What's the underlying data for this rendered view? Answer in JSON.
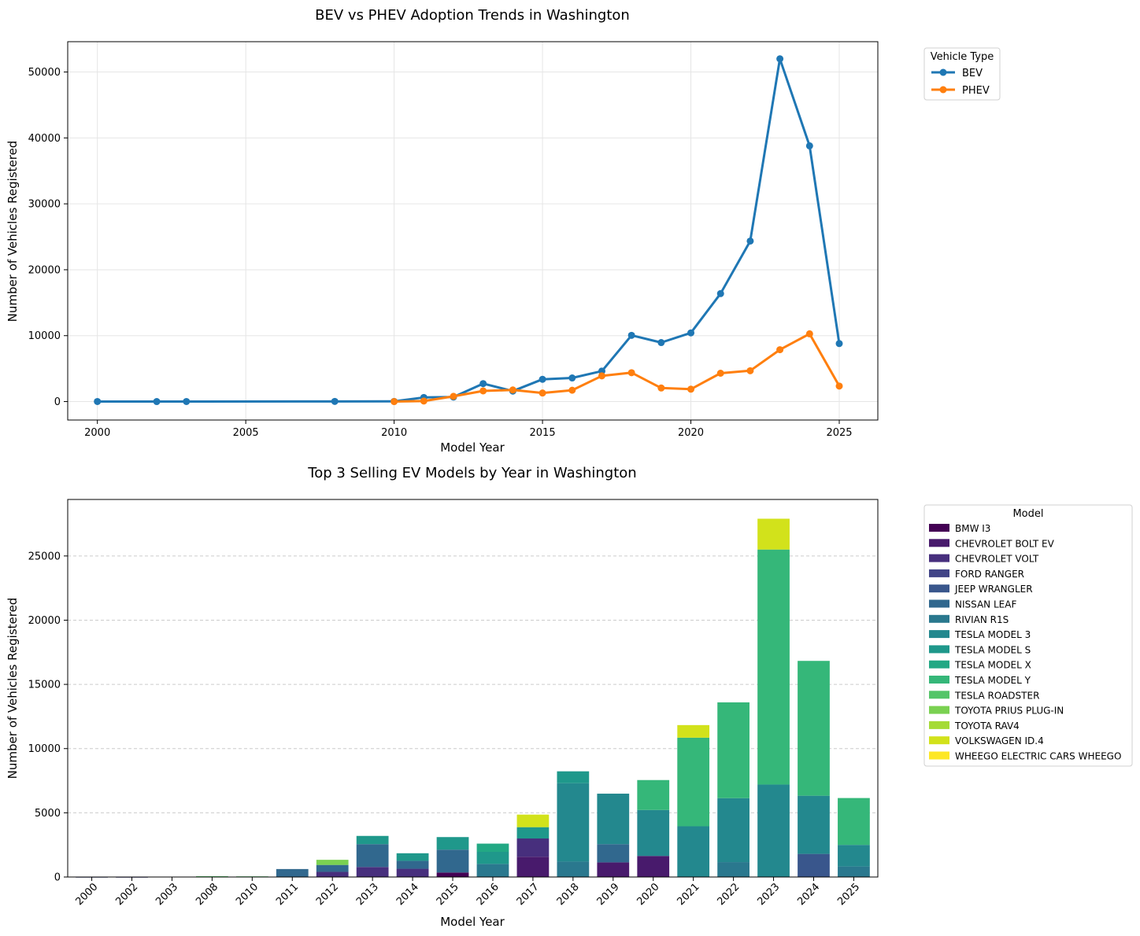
{
  "chart_data": [
    {
      "type": "line",
      "title": "BEV vs PHEV Adoption Trends in Washington",
      "xlabel": "Model Year",
      "ylabel": "Number of Vehicles Registered",
      "xlim": [
        1999,
        2026.3
      ],
      "ylim": [
        -2800,
        54600
      ],
      "x_ticks": [
        2000,
        2005,
        2010,
        2015,
        2020,
        2025
      ],
      "y_ticks": [
        0,
        10000,
        20000,
        30000,
        40000,
        50000
      ],
      "grid": true,
      "legend": {
        "title": "Vehicle Type",
        "placement": "outside-top-right"
      },
      "series": [
        {
          "name": "BEV",
          "color": "#1f77b4",
          "x": [
            2000,
            2002,
            2003,
            2008,
            2010,
            2011,
            2012,
            2013,
            2014,
            2015,
            2016,
            2017,
            2018,
            2019,
            2020,
            2021,
            2022,
            2023,
            2024,
            2025
          ],
          "values": [
            8,
            2,
            10,
            20,
            25,
            620,
            680,
            2720,
            1590,
            3380,
            3580,
            4620,
            10050,
            8950,
            10420,
            16380,
            24350,
            52000,
            38800,
            8800
          ]
        },
        {
          "name": "PHEV",
          "color": "#ff7f0e",
          "x": [
            2010,
            2011,
            2012,
            2013,
            2014,
            2015,
            2016,
            2017,
            2018,
            2019,
            2020,
            2021,
            2022,
            2023,
            2024,
            2025
          ],
          "values": [
            0,
            80,
            790,
            1620,
            1760,
            1300,
            1720,
            3900,
            4380,
            2060,
            1880,
            4300,
            4680,
            7870,
            10280,
            2350
          ]
        }
      ]
    },
    {
      "type": "bar",
      "stacked": true,
      "title": "Top 3 Selling EV Models by Year in Washington",
      "xlabel": "Model Year",
      "ylabel": "Number of Vehicles Registered",
      "ylim": [
        0,
        29400
      ],
      "y_ticks": [
        0,
        5000,
        10000,
        15000,
        20000,
        25000
      ],
      "grid": "y-dashed",
      "legend": {
        "title": "Model",
        "placement": "outside-top-right"
      },
      "categories": [
        "2000",
        "2002",
        "2003",
        "2008",
        "2010",
        "2011",
        "2012",
        "2013",
        "2014",
        "2015",
        "2016",
        "2017",
        "2018",
        "2019",
        "2020",
        "2021",
        "2022",
        "2023",
        "2024",
        "2025"
      ],
      "series": [
        {
          "name": "BMW I3",
          "color": "#440154",
          "values": [
            0,
            0,
            0,
            0,
            0,
            0,
            0,
            0,
            0,
            350,
            0,
            0,
            0,
            0,
            0,
            0,
            0,
            0,
            0,
            0
          ]
        },
        {
          "name": "CHEVROLET BOLT EV",
          "color": "#481a6c",
          "values": [
            0,
            0,
            0,
            0,
            0,
            0,
            0,
            0,
            0,
            0,
            0,
            1580,
            0,
            1140,
            1640,
            0,
            0,
            0,
            0,
            0
          ]
        },
        {
          "name": "CHEVROLET VOLT",
          "color": "#472f7d",
          "values": [
            0,
            0,
            0,
            0,
            0,
            0,
            400,
            780,
            640,
            0,
            0,
            1420,
            0,
            0,
            0,
            0,
            0,
            0,
            0,
            0
          ]
        },
        {
          "name": "FORD RANGER",
          "color": "#414487",
          "values": [
            4,
            2,
            0,
            0,
            0,
            0,
            0,
            0,
            0,
            0,
            0,
            0,
            0,
            0,
            0,
            0,
            0,
            0,
            0,
            0
          ]
        },
        {
          "name": "JEEP WRANGLER",
          "color": "#39568c",
          "values": [
            0,
            0,
            0,
            0,
            0,
            0,
            0,
            0,
            0,
            0,
            0,
            0,
            0,
            0,
            0,
            0,
            0,
            0,
            1800,
            0
          ]
        },
        {
          "name": "NISSAN LEAF",
          "color": "#31688e",
          "values": [
            0,
            0,
            0,
            0,
            0,
            620,
            540,
            1780,
            620,
            1780,
            0,
            0,
            0,
            1420,
            0,
            0,
            0,
            0,
            0,
            0
          ]
        },
        {
          "name": "RIVIAN R1S",
          "color": "#2a788e",
          "values": [
            0,
            0,
            0,
            0,
            0,
            0,
            0,
            0,
            0,
            0,
            1020,
            0,
            1200,
            0,
            0,
            0,
            1160,
            0,
            0,
            820
          ]
        },
        {
          "name": "TESLA MODEL 3",
          "color": "#23888e",
          "values": [
            0,
            0,
            0,
            0,
            0,
            0,
            0,
            0,
            0,
            0,
            0,
            0,
            6100,
            3930,
            3580,
            3950,
            4980,
            7200,
            4530,
            1680
          ]
        },
        {
          "name": "TESLA MODEL S",
          "color": "#1f988b",
          "values": [
            0,
            0,
            0,
            0,
            0,
            0,
            0,
            640,
            590,
            980,
            940,
            880,
            930,
            0,
            0,
            0,
            0,
            0,
            0,
            0
          ]
        },
        {
          "name": "TESLA MODEL X",
          "color": "#22a884",
          "values": [
            0,
            0,
            0,
            0,
            0,
            0,
            0,
            0,
            0,
            0,
            640,
            0,
            0,
            0,
            0,
            0,
            0,
            0,
            0,
            0
          ]
        },
        {
          "name": "TESLA MODEL Y",
          "color": "#35b779",
          "values": [
            0,
            0,
            0,
            0,
            0,
            0,
            0,
            0,
            0,
            0,
            0,
            0,
            0,
            0,
            2330,
            6900,
            7460,
            18300,
            10500,
            3650
          ]
        },
        {
          "name": "TESLA ROADSTER",
          "color": "#54c568",
          "values": [
            0,
            0,
            0,
            60,
            50,
            0,
            0,
            0,
            0,
            0,
            0,
            0,
            0,
            0,
            0,
            0,
            0,
            0,
            0,
            0
          ]
        },
        {
          "name": "TOYOTA PRIUS PLUG-IN",
          "color": "#7ad151",
          "values": [
            0,
            0,
            0,
            0,
            0,
            0,
            400,
            0,
            0,
            0,
            0,
            0,
            0,
            0,
            0,
            0,
            0,
            0,
            0,
            0
          ]
        },
        {
          "name": "TOYOTA RAV4",
          "color": "#a5db36",
          "values": [
            0,
            0,
            0,
            0,
            0,
            0,
            0,
            0,
            0,
            0,
            0,
            0,
            0,
            0,
            0,
            0,
            0,
            0,
            0,
            0
          ]
        },
        {
          "name": "VOLKSWAGEN ID.4",
          "color": "#d2e21b",
          "values": [
            0,
            0,
            0,
            0,
            0,
            0,
            0,
            0,
            0,
            0,
            0,
            980,
            0,
            0,
            0,
            980,
            0,
            2400,
            0,
            0
          ]
        },
        {
          "name": "WHEEGO ELECTRIC CARS WHEEGO",
          "color": "#fde725",
          "values": [
            0,
            0,
            0,
            0,
            0,
            0,
            0,
            0,
            0,
            0,
            0,
            0,
            0,
            0,
            0,
            0,
            0,
            0,
            0,
            0
          ]
        }
      ]
    }
  ]
}
